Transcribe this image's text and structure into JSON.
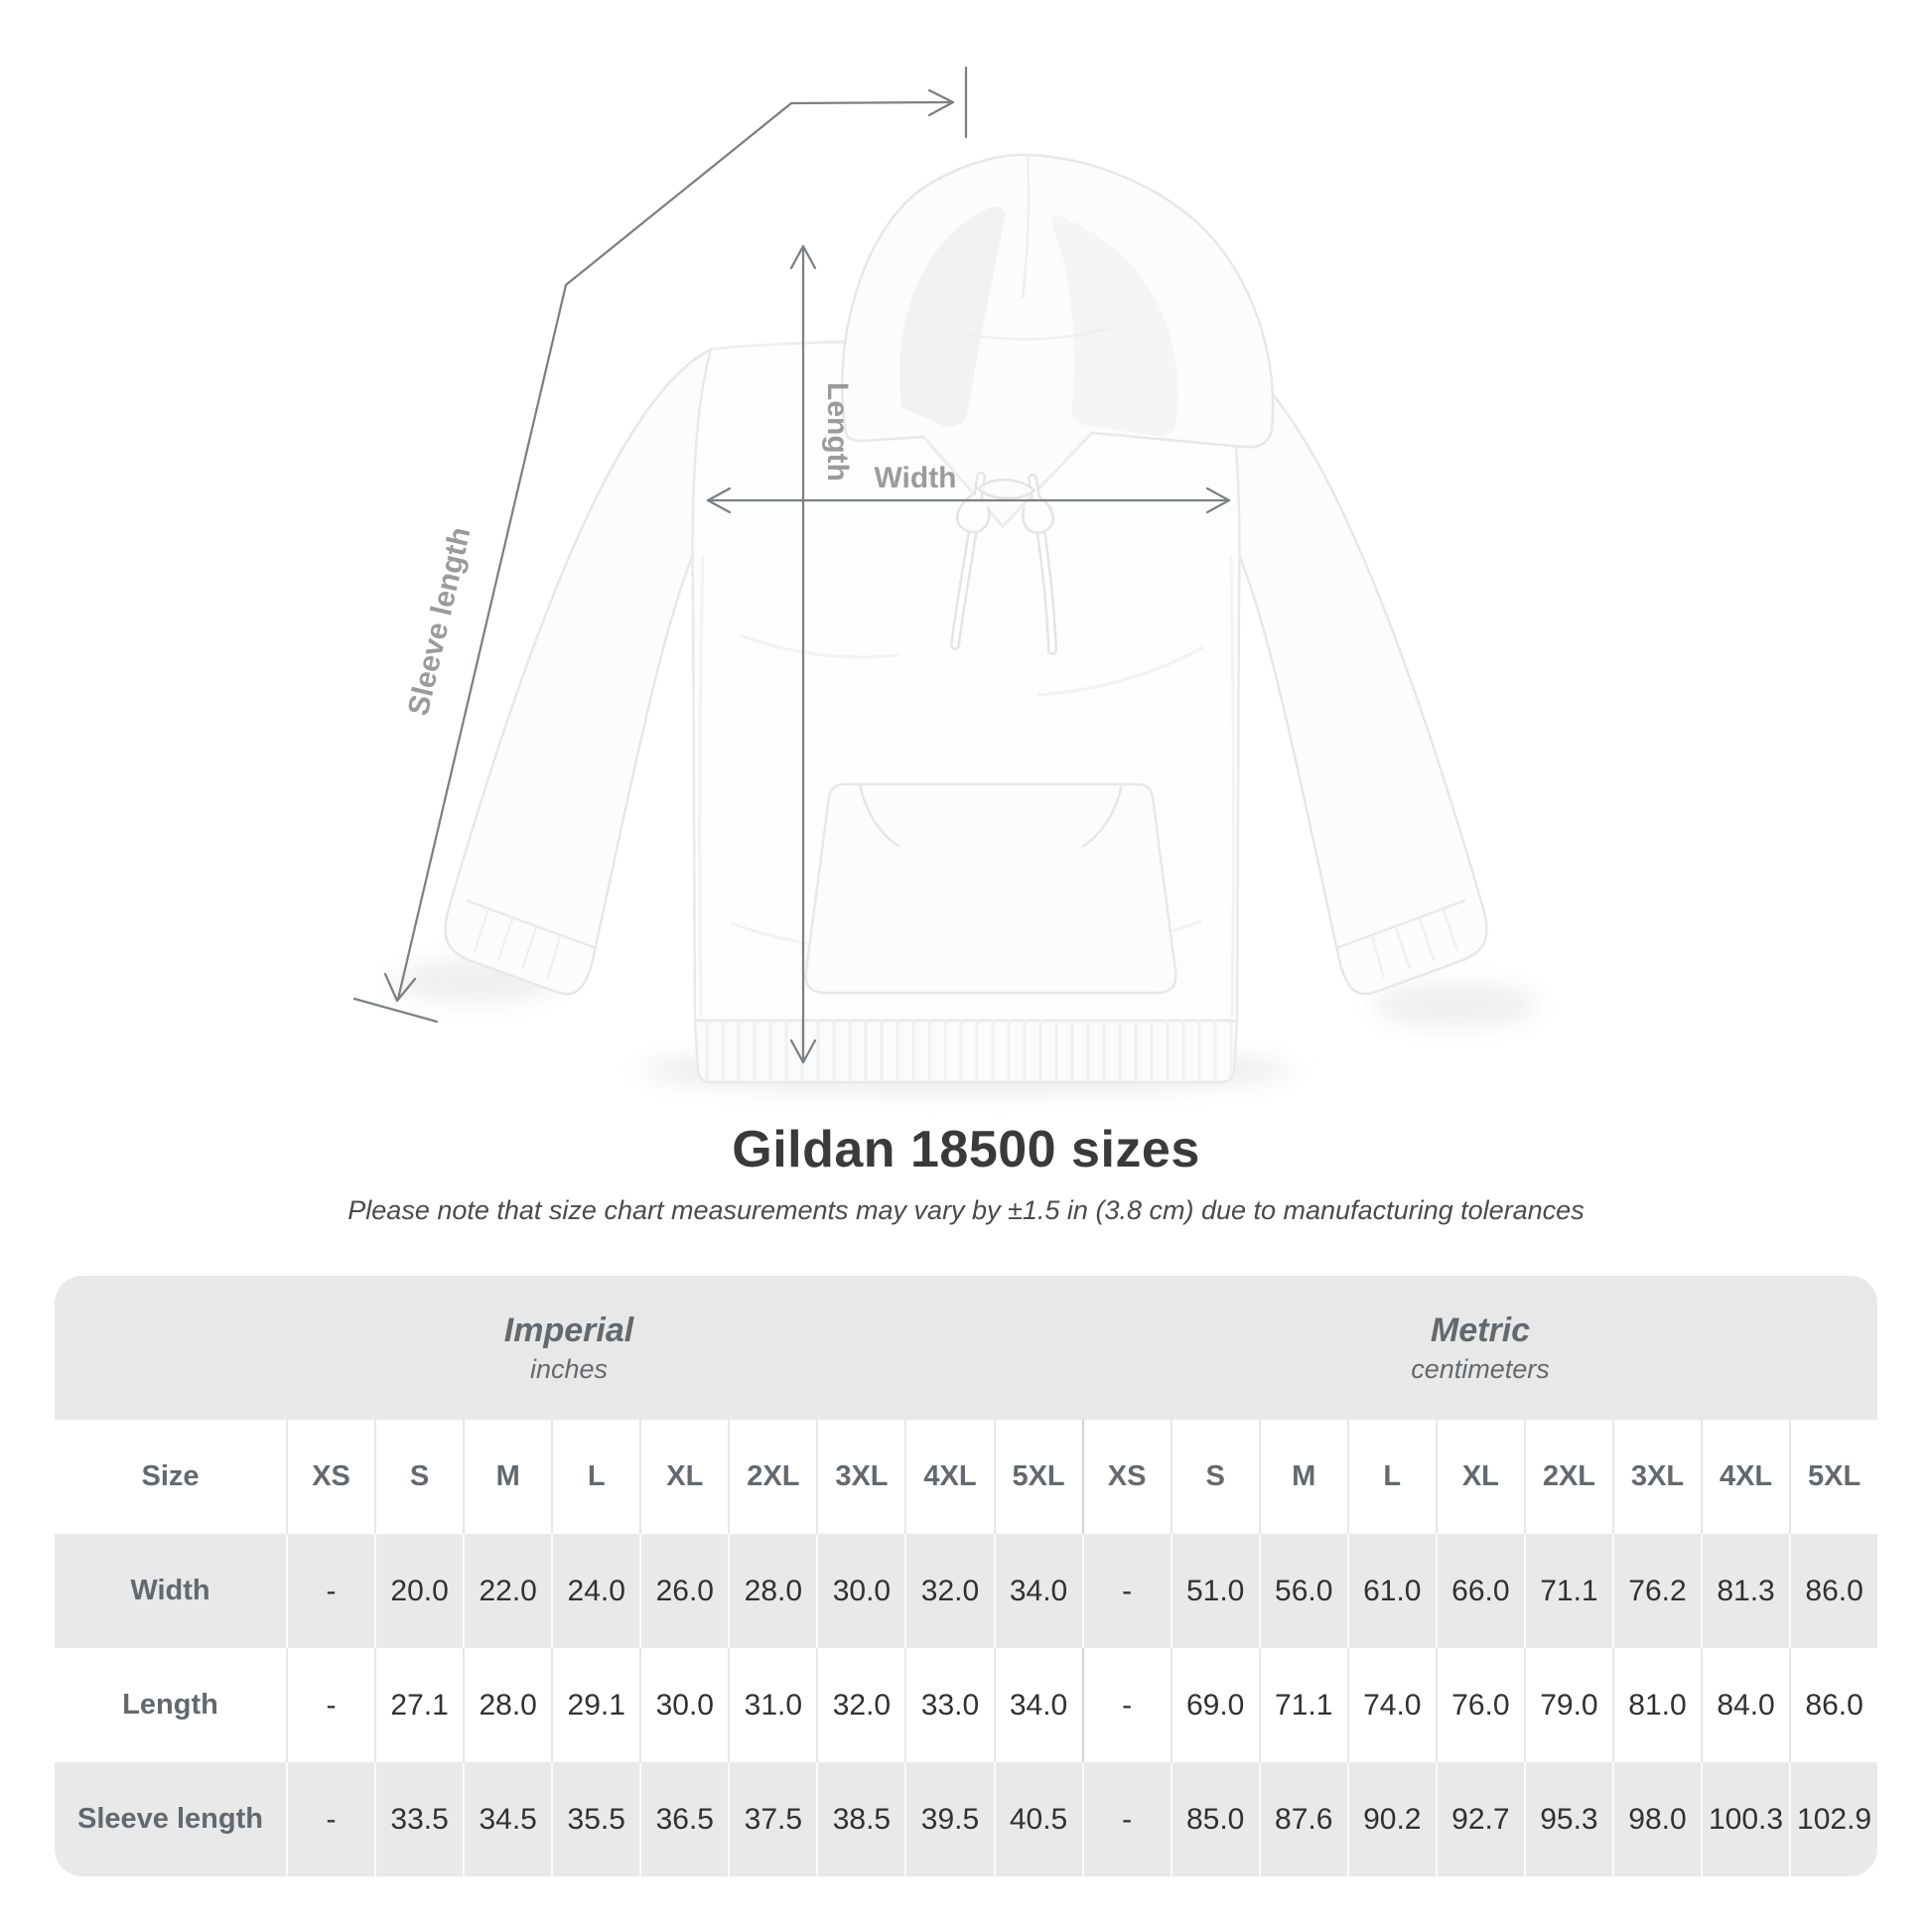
{
  "diagram": {
    "sleeve_label": "Sleeve length",
    "length_label": "Length",
    "width_label": "Width"
  },
  "heading": {
    "title": "Gildan 18500 sizes",
    "note": "Please note that size chart measurements may vary by ±1.5 in (3.8 cm) due to manufacturing tolerances"
  },
  "table": {
    "unit_groups": [
      {
        "label": "Imperial",
        "sublabel": "inches"
      },
      {
        "label": "Metric",
        "sublabel": "centimeters"
      }
    ],
    "size_column_header": "Size",
    "imperial_sizes": [
      "XS",
      "S",
      "M",
      "L",
      "XL",
      "2XL",
      "3XL",
      "4XL",
      "5XL"
    ],
    "metric_sizes": [
      "XS",
      "S",
      "M",
      "L",
      "XL",
      "2XL",
      "3XL",
      "4XL",
      "5XL"
    ],
    "rows": [
      {
        "label": "Width",
        "imperial": [
          "-",
          "20.0",
          "22.0",
          "24.0",
          "26.0",
          "28.0",
          "30.0",
          "32.0",
          "34.0"
        ],
        "metric": [
          "-",
          "51.0",
          "56.0",
          "61.0",
          "66.0",
          "71.1",
          "76.2",
          "81.3",
          "86.0"
        ]
      },
      {
        "label": "Length",
        "imperial": [
          "-",
          "27.1",
          "28.0",
          "29.1",
          "30.0",
          "31.0",
          "32.0",
          "33.0",
          "34.0"
        ],
        "metric": [
          "-",
          "69.0",
          "71.1",
          "74.0",
          "76.0",
          "79.0",
          "81.0",
          "84.0",
          "86.0"
        ]
      },
      {
        "label": "Sleeve length",
        "imperial": [
          "-",
          "33.5",
          "34.5",
          "35.5",
          "36.5",
          "37.5",
          "38.5",
          "39.5",
          "40.5"
        ],
        "metric": [
          "-",
          "85.0",
          "87.6",
          "90.2",
          "92.7",
          "95.3",
          "98.0",
          "100.3",
          "102.9"
        ]
      }
    ]
  },
  "colors": {
    "table_band": "#e8e8e8",
    "row_stripe": "#e9e9e9",
    "header_text": "#63696e",
    "value_text": "#2f3133",
    "title_text": "#3a3a3c",
    "note_text": "#4b4b4d",
    "diagram_line": "#7b8084",
    "diagram_label_text": "#9b9b9b",
    "garment_color": "#fdfdfd"
  }
}
